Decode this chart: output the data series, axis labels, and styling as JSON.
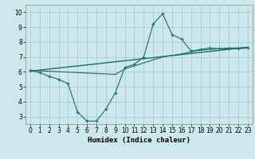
{
  "title": "",
  "xlabel": "Humidex (Indice chaleur)",
  "bg_color": "#cce8ec",
  "grid_color": "#aacccc",
  "line_color": "#1a6b6b",
  "xlim": [
    -0.5,
    23.5
  ],
  "ylim": [
    2.5,
    10.5
  ],
  "xticks": [
    0,
    1,
    2,
    3,
    4,
    5,
    6,
    7,
    8,
    9,
    10,
    11,
    12,
    13,
    14,
    15,
    16,
    17,
    18,
    19,
    20,
    21,
    22,
    23
  ],
  "yticks": [
    3,
    4,
    5,
    6,
    7,
    8,
    9,
    10
  ],
  "line1_x": [
    0,
    1,
    2,
    3,
    4,
    5,
    6,
    7,
    8,
    9,
    10,
    11,
    12,
    13,
    14,
    15,
    16,
    17,
    18,
    19,
    20,
    21,
    22,
    23
  ],
  "line1_y": [
    6.1,
    5.95,
    5.7,
    5.5,
    5.2,
    3.3,
    2.7,
    2.7,
    3.5,
    4.6,
    6.3,
    6.5,
    7.0,
    9.2,
    9.9,
    8.5,
    8.2,
    7.4,
    7.5,
    7.6,
    7.55,
    7.55,
    7.55,
    7.6
  ],
  "line2_x": [
    0,
    1,
    2,
    3,
    4,
    5,
    6,
    7,
    8,
    9,
    10,
    11,
    12,
    13,
    14,
    15,
    16,
    17,
    18,
    19,
    20,
    21,
    22,
    23
  ],
  "line2_y": [
    6.1,
    6.07,
    6.04,
    6.01,
    5.98,
    5.95,
    5.92,
    5.89,
    5.86,
    5.83,
    6.2,
    6.4,
    6.6,
    6.8,
    7.0,
    7.1,
    7.2,
    7.35,
    7.45,
    7.5,
    7.55,
    7.6,
    7.6,
    7.65
  ],
  "line3_x": [
    0,
    23
  ],
  "line3_y": [
    6.05,
    7.65
  ]
}
